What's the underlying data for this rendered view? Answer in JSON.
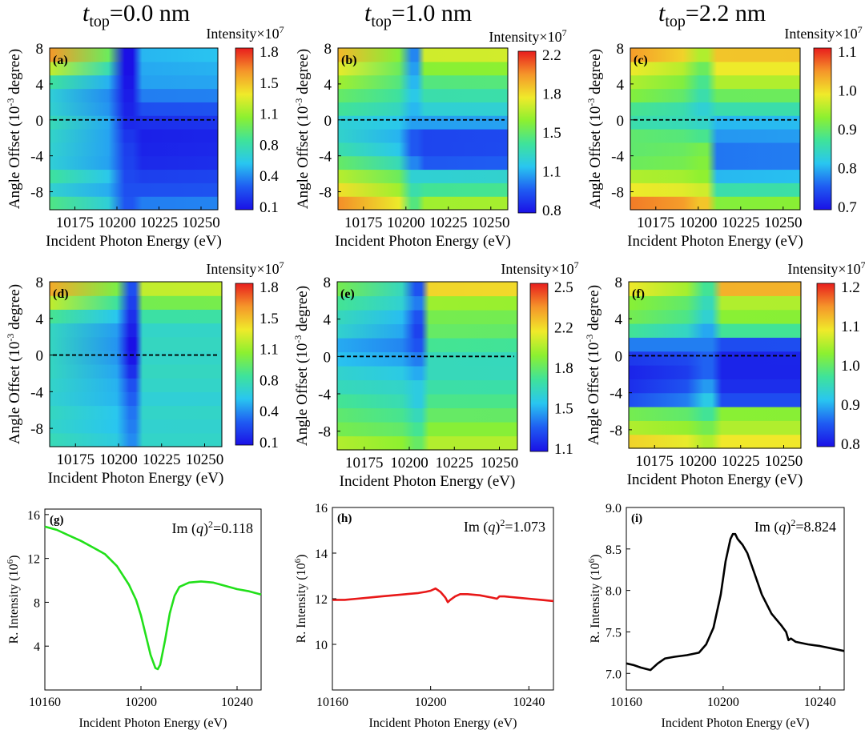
{
  "column_titles": [
    {
      "symbol": "t",
      "sub": "top",
      "rest": "=0.0 nm"
    },
    {
      "symbol": "t",
      "sub": "top",
      "rest": "=1.0 nm"
    },
    {
      "symbol": "t",
      "sub": "top",
      "rest": "=2.2 nm"
    }
  ],
  "colormap": [
    "#1a10e6",
    "#1f5cf2",
    "#29c6f0",
    "#3fe39a",
    "#8cf030",
    "#f0ea2a",
    "#f5962a",
    "#e81d1d"
  ],
  "chart_data": [
    {
      "id": "a",
      "type": "heatmap",
      "panel_label": "(a)",
      "xlabel": "Incident Photon Energy (eV)",
      "ylabel_main": "Angle Offset (10",
      "ylabel_sup": "-3",
      "ylabel_end": " degree)",
      "x_ticks": [
        10175,
        10200,
        10225,
        10250
      ],
      "y_ticks": [
        8,
        4,
        0,
        -4,
        -8
      ],
      "xlim": [
        10160,
        10260
      ],
      "ylim": [
        -10,
        8
      ],
      "colorbar_title": "Intensity×10",
      "colorbar_sup": "7",
      "colorbar_ticks": [
        "1.8",
        "1.5",
        "1.1",
        "0.8",
        "0.4",
        "0.1"
      ],
      "zlim": [
        0.1,
        1.8
      ],
      "resonance_ev": 10207,
      "dip_width_ev": 4,
      "row_left": [
        0.88,
        0.68,
        0.82,
        0.66,
        0.68,
        0.7,
        0.75,
        0.68,
        0.66,
        0.82,
        1.2,
        1.55
      ],
      "row_right": [
        0.42,
        0.3,
        0.25,
        0.18,
        0.16,
        0.15,
        0.2,
        0.3,
        0.42,
        0.5,
        0.52,
        0.55
      ],
      "row_dip": [
        0.32,
        0.3,
        0.28,
        0.26,
        0.25,
        0.22,
        0.18,
        0.16,
        0.14,
        0.12,
        0.1,
        0.1
      ],
      "dashed_line_y": 0
    },
    {
      "id": "b",
      "type": "heatmap",
      "panel_label": "(b)",
      "xlabel": "Incident Photon Energy (eV)",
      "ylabel_main": "Angle Offset (10",
      "ylabel_sup": "-3",
      "ylabel_end": " degree)",
      "x_ticks": [
        10175,
        10200,
        10225,
        10250
      ],
      "y_ticks": [
        8,
        4,
        0,
        -4,
        -8
      ],
      "xlim": [
        10160,
        10260
      ],
      "ylim": [
        -10,
        8
      ],
      "colorbar_title": "Intensity×10",
      "colorbar_sup": "7",
      "colorbar_ticks": [
        "2.2",
        "1.8",
        "1.5",
        "1.1",
        "0.8"
      ],
      "zlim": [
        0.8,
        2.3
      ],
      "resonance_ev": 10205,
      "dip_width_ev": 3,
      "row_left": [
        2.1,
        1.9,
        1.75,
        1.55,
        1.4,
        1.32,
        1.3,
        1.45,
        1.55,
        1.7,
        1.85,
        2.0
      ],
      "row_right": [
        1.7,
        1.45,
        1.3,
        1.0,
        0.95,
        0.95,
        1.15,
        1.3,
        1.4,
        1.5,
        1.65,
        1.8
      ],
      "row_dip": [
        1.5,
        1.4,
        1.3,
        1.1,
        1.0,
        1.0,
        1.15,
        1.2,
        1.25,
        1.2,
        1.15,
        1.1
      ],
      "dashed_line_y": 0
    },
    {
      "id": "c",
      "type": "heatmap",
      "panel_label": "(c)",
      "xlabel": "Incident Photon Energy (eV)",
      "ylabel_main": "Angle Offset (10",
      "ylabel_sup": "-3",
      "ylabel_end": " degree)",
      "x_ticks": [
        10175,
        10200,
        10225,
        10250
      ],
      "y_ticks": [
        8,
        4,
        0,
        -4,
        -8
      ],
      "xlim": [
        10160,
        10260
      ],
      "ylim": [
        -10,
        8
      ],
      "colorbar_title": "Intensity×10",
      "colorbar_sup": "7",
      "colorbar_ticks": [
        "1.1",
        "1.0",
        "0.9",
        "0.8",
        "0.7"
      ],
      "zlim": [
        0.7,
        1.15
      ],
      "resonance_ev": 10203,
      "dip_width_ev": 4,
      "row_left": [
        1.1,
        1.02,
        0.98,
        0.93,
        0.92,
        0.92,
        0.88,
        0.9,
        0.95,
        0.98,
        1.02,
        1.08
      ],
      "row_right": [
        0.95,
        0.88,
        0.82,
        0.78,
        0.78,
        0.8,
        0.82,
        0.88,
        0.93,
        0.98,
        1.02,
        1.05
      ],
      "row_dip": [
        1.05,
        1.0,
        0.96,
        0.95,
        0.94,
        0.9,
        0.86,
        0.85,
        0.88,
        0.9,
        0.93,
        0.98
      ],
      "dashed_line_y": 0
    },
    {
      "id": "d",
      "type": "heatmap",
      "panel_label": "(d)",
      "xlabel": "Incident Photon Energy (eV)",
      "ylabel_main": "Angle Offset (10",
      "ylabel_sup": "-3",
      "ylabel_end": " degree)",
      "x_ticks": [
        10175,
        10200,
        10225,
        10250
      ],
      "y_ticks": [
        8,
        4,
        0,
        -4,
        -8
      ],
      "xlim": [
        10160,
        10260
      ],
      "ylim": [
        -10,
        8
      ],
      "colorbar_title": "Intensity×10",
      "colorbar_sup": "7",
      "colorbar_ticks": [
        "1.8",
        "1.5",
        "1.1",
        "0.8",
        "0.4",
        "0.1"
      ],
      "zlim": [
        0.1,
        1.8
      ],
      "resonance_ev": 10208,
      "dip_width_ev": 3,
      "row_left": [
        0.75,
        0.7,
        0.72,
        0.68,
        0.7,
        0.72,
        0.72,
        0.72,
        0.72,
        0.85,
        1.2,
        1.5
      ],
      "row_right": [
        0.7,
        0.68,
        0.7,
        0.66,
        0.7,
        0.72,
        0.7,
        0.72,
        0.7,
        0.8,
        1.0,
        1.2
      ],
      "row_dip": [
        0.45,
        0.42,
        0.4,
        0.35,
        0.3,
        0.2,
        0.12,
        0.1,
        0.15,
        0.2,
        0.25,
        0.3
      ],
      "dashed_line_y": 0
    },
    {
      "id": "e",
      "type": "heatmap",
      "panel_label": "(e)",
      "xlabel": "Incident Photon Energy (eV)",
      "ylabel_main": "Angle Offset (10",
      "ylabel_sup": "-3",
      "ylabel_end": " degree)",
      "x_ticks": [
        10175,
        10200,
        10225,
        10250
      ],
      "y_ticks": [
        8,
        4,
        0,
        -4,
        -8
      ],
      "xlim": [
        10160,
        10260
      ],
      "ylim": [
        -10,
        8
      ],
      "colorbar_title": "Intensity×10",
      "colorbar_sup": "7",
      "colorbar_ticks": [
        "2.5",
        "2.2",
        "1.8",
        "1.5",
        "1.1"
      ],
      "zlim": [
        1.0,
        2.6
      ],
      "resonance_ev": 10205,
      "dip_width_ev": 3,
      "row_left": [
        2.0,
        1.85,
        1.78,
        1.7,
        1.6,
        1.55,
        1.45,
        1.4,
        1.55,
        1.6,
        1.7,
        1.85
      ],
      "row_right": [
        2.0,
        1.9,
        1.8,
        1.72,
        1.65,
        1.6,
        1.6,
        1.7,
        1.8,
        1.85,
        1.95,
        2.2
      ],
      "row_dip": [
        1.8,
        1.7,
        1.6,
        1.5,
        1.5,
        1.4,
        1.3,
        1.2,
        1.15,
        1.2,
        1.3,
        1.2
      ],
      "dashed_line_y": 0
    },
    {
      "id": "f",
      "type": "heatmap",
      "panel_label": "(f)",
      "xlabel": "Incident Photon Energy (eV)",
      "ylabel_main": "Angle Offset (10",
      "ylabel_sup": "-3",
      "ylabel_end": " degree)",
      "x_ticks": [
        10175,
        10200,
        10225,
        10250
      ],
      "y_ticks": [
        8,
        4,
        0,
        -4,
        -8
      ],
      "xlim": [
        10160,
        10260
      ],
      "ylim": [
        -10,
        8
      ],
      "colorbar_title": "Intensity×10",
      "colorbar_sup": "7",
      "colorbar_ticks": [
        "1.2",
        "1.1",
        "1.0",
        "0.9",
        "0.8"
      ],
      "zlim": [
        0.72,
        1.25
      ],
      "resonance_ev": 10206,
      "dip_width_ev": 4,
      "row_left": [
        1.12,
        1.05,
        1.0,
        0.78,
        0.75,
        0.74,
        0.76,
        0.82,
        0.95,
        1.0,
        1.02,
        1.1
      ],
      "row_right": [
        1.1,
        1.05,
        1.02,
        0.78,
        0.75,
        0.74,
        0.74,
        0.78,
        0.95,
        1.02,
        1.05,
        1.15
      ],
      "row_dip": [
        1.05,
        1.0,
        0.95,
        0.88,
        0.84,
        0.8,
        0.8,
        0.82,
        0.85,
        0.9,
        0.92,
        0.95
      ],
      "dashed_line_y": 0
    },
    {
      "id": "g",
      "type": "line",
      "panel_label": "(g)",
      "annotation_main": "Im (",
      "annotation_var": "q",
      "annotation_close": ")",
      "annotation_sup": "2",
      "annotation_val": "=0.118",
      "xlabel": "Incident Photon Energy (eV)",
      "ylabel_main": "R. Intensity (10",
      "ylabel_sup": "6",
      "ylabel_end": ")",
      "x_ticks": [
        10160,
        10200,
        10240
      ],
      "y_ticks": [
        4,
        8,
        12,
        16
      ],
      "xlim": [
        10160,
        10250
      ],
      "ylim": [
        0,
        16.5
      ],
      "color": "#22e01a",
      "x": [
        10160,
        10165,
        10170,
        10175,
        10180,
        10185,
        10190,
        10195,
        10198,
        10200,
        10202,
        10204,
        10206,
        10207,
        10208,
        10210,
        10212,
        10214,
        10216,
        10220,
        10225,
        10230,
        10235,
        10240,
        10245,
        10250
      ],
      "y": [
        14.9,
        14.6,
        14.1,
        13.6,
        13.0,
        12.4,
        11.3,
        9.6,
        8.2,
        6.8,
        5.0,
        3.2,
        2.0,
        1.9,
        2.3,
        4.5,
        7.0,
        8.6,
        9.4,
        9.8,
        9.9,
        9.8,
        9.5,
        9.2,
        9.0,
        8.7
      ]
    },
    {
      "id": "h",
      "type": "line",
      "panel_label": "(h)",
      "annotation_main": "Im (",
      "annotation_var": "q",
      "annotation_close": ")",
      "annotation_sup": "2",
      "annotation_val": "=1.073",
      "xlabel": "Incident Photon Energy (eV)",
      "ylabel_main": "R. Intensity (10",
      "ylabel_sup": "6",
      "ylabel_end": ")",
      "x_ticks": [
        10160,
        10200,
        10240
      ],
      "y_ticks": [
        10,
        12,
        14,
        16
      ],
      "xlim": [
        10160,
        10250
      ],
      "ylim": [
        8,
        16
      ],
      "color": "#e81818",
      "x": [
        10160,
        10165,
        10170,
        10175,
        10180,
        10185,
        10190,
        10195,
        10198,
        10200,
        10202,
        10204,
        10206,
        10207,
        10208,
        10210,
        10212,
        10215,
        10220,
        10225,
        10227,
        10228,
        10230,
        10235,
        10240,
        10245,
        10250
      ],
      "y": [
        11.95,
        11.95,
        12.0,
        12.05,
        12.1,
        12.15,
        12.2,
        12.25,
        12.3,
        12.35,
        12.45,
        12.3,
        12.05,
        11.85,
        11.95,
        12.1,
        12.2,
        12.2,
        12.15,
        12.05,
        12.0,
        12.1,
        12.1,
        12.05,
        12.0,
        11.95,
        11.9
      ]
    },
    {
      "id": "i",
      "type": "line",
      "panel_label": "(i)",
      "annotation_main": "Im (",
      "annotation_var": "q",
      "annotation_close": ")",
      "annotation_sup": "2",
      "annotation_val": "=8.824",
      "xlabel": "Incident Photon Energy (eV)",
      "ylabel_main": "R. Intensity (10",
      "ylabel_sup": "6",
      "ylabel_end": ")",
      "x_ticks": [
        10160,
        10200,
        10240
      ],
      "y_ticks": [
        7.0,
        7.5,
        8.0,
        8.5,
        9.0
      ],
      "xlim": [
        10160,
        10250
      ],
      "ylim": [
        6.8,
        9.0
      ],
      "color": "#000000",
      "x": [
        10160,
        10163,
        10166,
        10170,
        10173,
        10176,
        10180,
        10185,
        10190,
        10193,
        10196,
        10199,
        10201,
        10203,
        10204,
        10205,
        10206,
        10208,
        10210,
        10213,
        10216,
        10220,
        10224,
        10226,
        10227,
        10228,
        10230,
        10235,
        10240,
        10245,
        10250
      ],
      "y": [
        7.12,
        7.1,
        7.07,
        7.04,
        7.12,
        7.18,
        7.2,
        7.22,
        7.25,
        7.35,
        7.55,
        7.95,
        8.35,
        8.62,
        8.68,
        8.68,
        8.62,
        8.55,
        8.45,
        8.2,
        7.95,
        7.72,
        7.58,
        7.5,
        7.4,
        7.42,
        7.38,
        7.35,
        7.33,
        7.3,
        7.27
      ]
    }
  ]
}
